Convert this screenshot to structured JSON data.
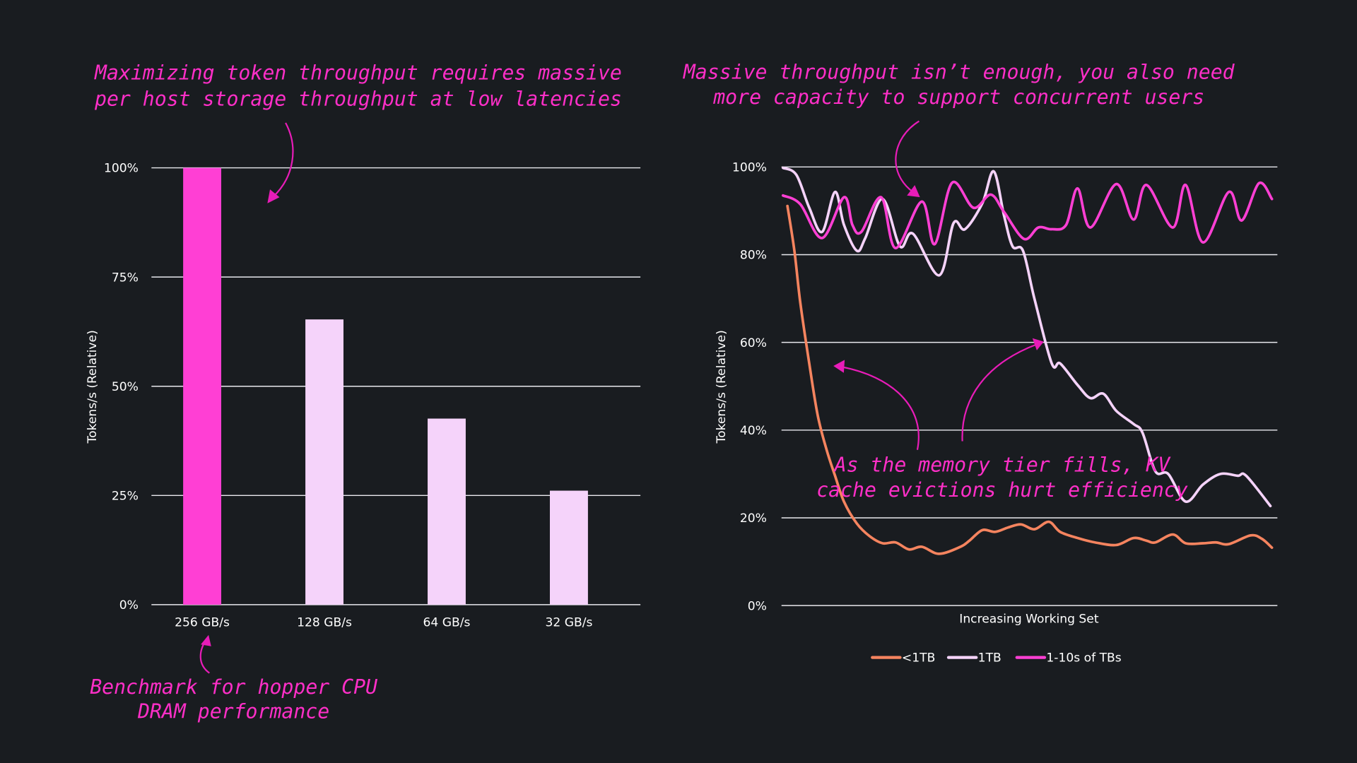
{
  "chart_data": [
    {
      "type": "bar",
      "title": "",
      "xlabel": "",
      "ylabel": "Tokens/s (Relative)",
      "ylim": [
        0,
        100
      ],
      "yticks": [
        "0%",
        "25%",
        "50%",
        "75%",
        "100%"
      ],
      "ytick_values": [
        0,
        25,
        50,
        75,
        100
      ],
      "grid": true,
      "categories": [
        "256 GB/s",
        "128 GB/s",
        "64 GB/s",
        "32 GB/s"
      ],
      "values": [
        100,
        65.3,
        42.6,
        26.1
      ],
      "colors": [
        "#ff3fd4",
        "#f5d3fa",
        "#f5d3fa",
        "#f5d3fa"
      ],
      "annotations": [
        "Maximizing token throughput requires massive",
        "per host storage throughput at low latencies",
        "Benchmark for hopper CPU",
        "DRAM performance"
      ]
    },
    {
      "type": "line",
      "title": "",
      "xlabel": "Increasing Working Set",
      "ylabel": "Tokens/s (Relative)",
      "ylim": [
        0,
        100
      ],
      "xlim": [
        0,
        100
      ],
      "yticks": [
        "0%",
        "20%",
        "40%",
        "60%",
        "80%",
        "100%"
      ],
      "ytick_values": [
        0,
        20,
        40,
        60,
        80,
        100
      ],
      "grid": true,
      "legend": "bottom",
      "series": [
        {
          "name": "<1TB",
          "color": "#f5845f",
          "x": [
            1.2,
            2.6,
            3.8,
            5.6,
            7.3,
            9.1,
            10.8,
            12.6,
            15.2,
            17.8,
            20.4,
            23.0,
            25.7,
            28.3,
            31.8,
            36.1,
            37.9,
            40.5,
            43.1,
            45.7,
            48.3,
            51.0,
            53.9,
            56.2,
            59.7,
            63.2,
            67.5,
            71.0,
            73.6,
            75.4,
            78.9,
            81.5,
            85.0,
            87.6,
            90.2,
            94.6,
            96.9,
            98.9
          ],
          "y": [
            91.1,
            80.9,
            69.0,
            55.2,
            43.4,
            35.5,
            29.6,
            23.7,
            18.7,
            15.8,
            14.2,
            14.4,
            12.8,
            13.4,
            11.8,
            13.4,
            14.8,
            17.2,
            16.8,
            17.8,
            18.5,
            17.4,
            19.1,
            16.8,
            15.4,
            14.4,
            13.8,
            15.4,
            14.8,
            14.4,
            16.2,
            14.2,
            14.2,
            14.4,
            14.0,
            16.0,
            15.2,
            13.2
          ]
        },
        {
          "name": "1TB",
          "color": "#f5d3fa",
          "x": [
            0.3,
            3.0,
            5.6,
            8.2,
            10.8,
            12.6,
            15.2,
            16.9,
            20.4,
            23.9,
            26.5,
            31.8,
            34.7,
            37.0,
            40.5,
            42.8,
            44.9,
            46.6,
            48.7,
            51.0,
            54.5,
            56.2,
            59.7,
            62.3,
            64.9,
            67.5,
            71.0,
            72.8,
            75.4,
            78.0,
            81.5,
            85.0,
            88.5,
            92.0,
            93.7,
            98.6
          ],
          "y": [
            99.8,
            98.2,
            90.7,
            85.2,
            94.3,
            86.8,
            80.9,
            83.8,
            92.7,
            81.9,
            84.8,
            75.3,
            87.2,
            85.8,
            91.7,
            99.0,
            88.8,
            81.9,
            80.9,
            70.0,
            55.2,
            55.2,
            50.3,
            47.3,
            48.3,
            44.4,
            41.4,
            39.4,
            30.6,
            30.0,
            23.7,
            27.6,
            30.0,
            29.6,
            29.6,
            22.7
          ]
        },
        {
          "name": "1-10s of TBs",
          "color": "#ff3fd4",
          "x": [
            0.3,
            3.8,
            8.2,
            12.6,
            14.3,
            16.1,
            20.1,
            23.0,
            28.3,
            30.9,
            34.4,
            38.7,
            42.2,
            44.9,
            48.9,
            51.8,
            54.5,
            57.4,
            59.7,
            62.3,
            67.5,
            71.0,
            73.6,
            78.9,
            81.5,
            85.0,
            90.2,
            92.8,
            96.3,
            98.9
          ],
          "y": [
            93.5,
            91.5,
            83.8,
            93.1,
            86.8,
            85.2,
            93.1,
            81.5,
            92.1,
            82.4,
            96.4,
            90.7,
            93.7,
            89.7,
            83.6,
            86.2,
            85.8,
            86.8,
            95.1,
            86.2,
            96.1,
            88.0,
            95.9,
            86.2,
            95.9,
            82.8,
            94.3,
            87.8,
            96.3,
            92.7
          ]
        }
      ],
      "annotations": [
        "Massive throughput isn’t enough, you also need",
        "more capacity to support concurrent users",
        "As the memory tier fills, KV",
        "cache evictions hurt efficiency"
      ]
    }
  ]
}
